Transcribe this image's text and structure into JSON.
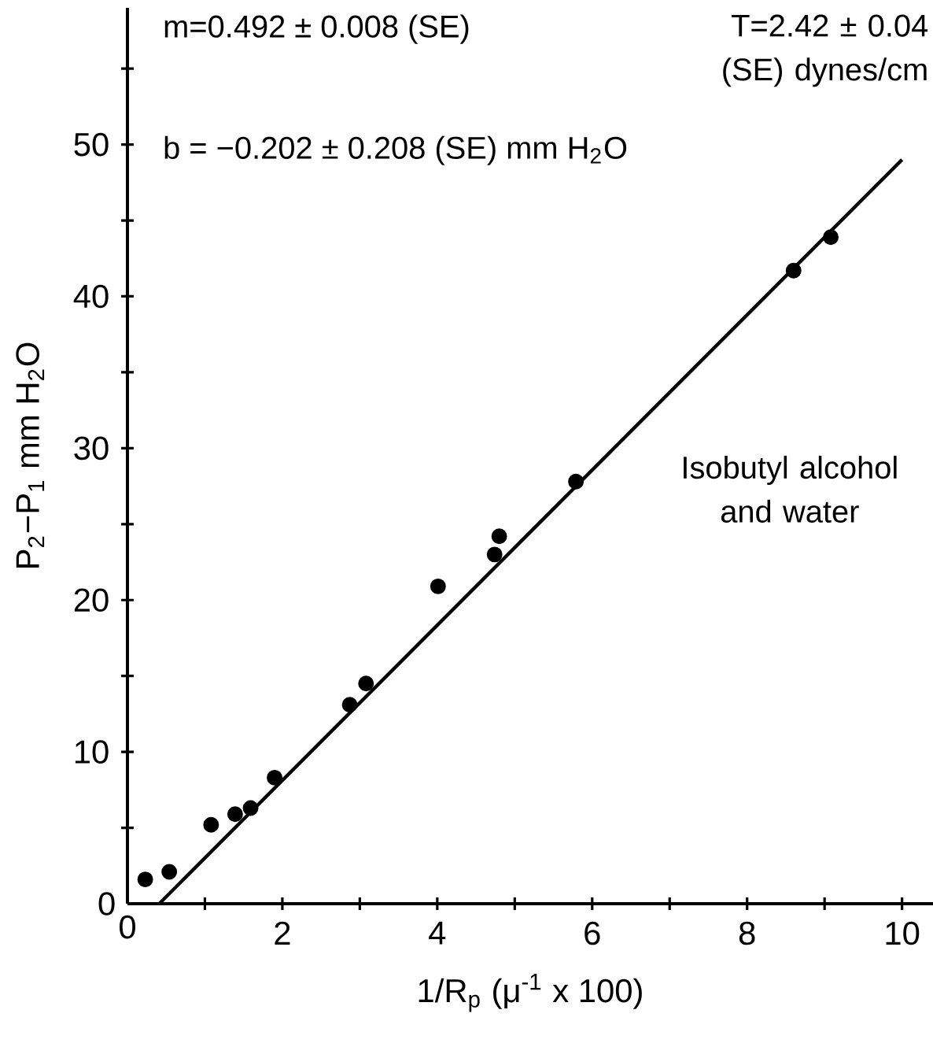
{
  "chart_data": {
    "type": "scatter",
    "xlabel": "1/R$_{p}$  (μ$^{-1}$ x 100)",
    "ylabel": "P$_{2}$−P$_{1}$  mm H$_{2}$O",
    "annotations": [
      "m=0.492 ± 0.008 (SE)",
      "T=2.42 ± 0.04 (SE) dynes/cm",
      "b = −0.202 ± 0.208 (SE) mm H$_{2}$O",
      "Isobutyl alcohol and water"
    ],
    "xlim": [
      0,
      10.4
    ],
    "ylim": [
      0,
      59
    ],
    "xticks": [
      0,
      {
        "value": 1,
        "label": null
      },
      2,
      {
        "value": 3,
        "label": null
      },
      4,
      {
        "value": 5,
        "label": null
      },
      6,
      {
        "value": 7,
        "label": null
      },
      8,
      {
        "value": 9,
        "label": null
      },
      10
    ],
    "yticks": [
      0,
      {
        "value": 5,
        "label": null
      },
      10,
      {
        "value": 15,
        "label": null
      },
      20,
      {
        "value": 25,
        "label": null
      },
      30,
      {
        "value": 35,
        "label": null
      },
      40,
      {
        "value": 45,
        "label": null
      },
      50,
      {
        "value": 55,
        "label": null
      }
    ],
    "marker": "circle",
    "series": [
      {
        "type": "scatter",
        "color": "#000000",
        "x": [
          0.23,
          0.54,
          1.08,
          1.39,
          1.59,
          1.9,
          2.87,
          3.08,
          4.01,
          4.74,
          4.8,
          5.79,
          8.6,
          9.08
        ],
        "values": [
          1.6,
          2.1,
          5.2,
          5.9,
          6.3,
          8.3,
          13.1,
          14.5,
          20.9,
          23.0,
          24.2,
          27.8,
          41.7,
          43.9
        ]
      },
      {
        "type": "line",
        "color": "#000000",
        "marker": "none",
        "x": [
          0.41,
          10.0
        ],
        "values": [
          0,
          49.0
        ]
      }
    ]
  }
}
